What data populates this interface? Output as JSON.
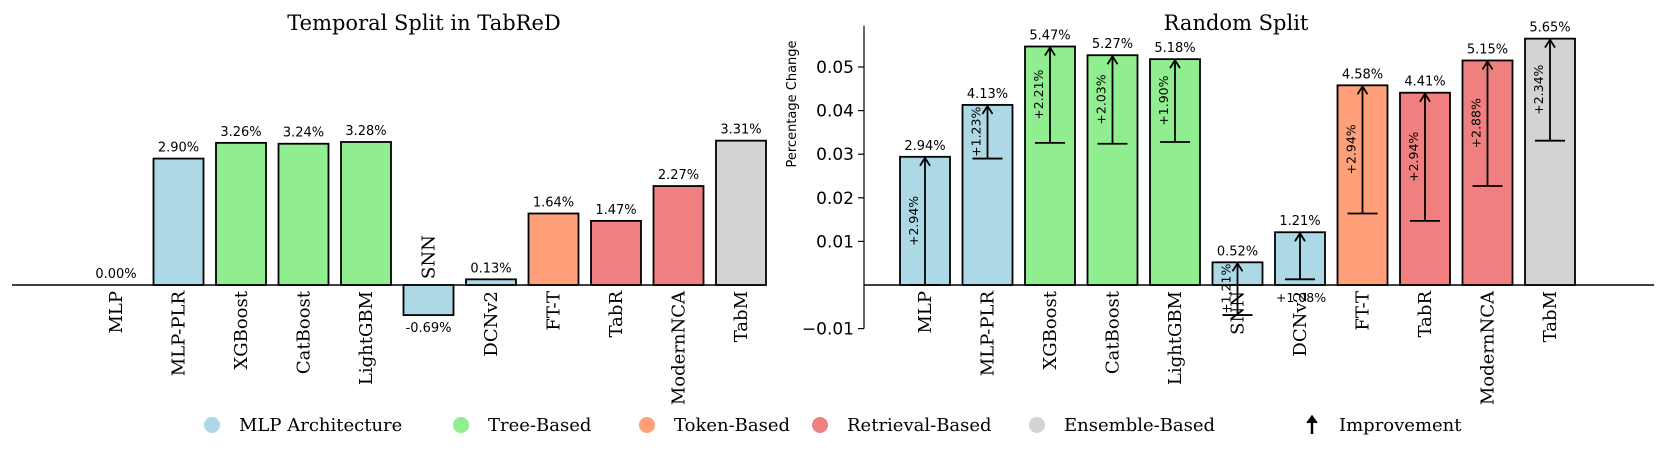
{
  "legend": [
    {
      "name": "MLP Architecture",
      "color": "#ADD8E6",
      "marker": "dot"
    },
    {
      "name": "Tree-Based",
      "color": "#90EE90",
      "marker": "dot"
    },
    {
      "name": "Token-Based",
      "color": "#FFA07A",
      "marker": "dot"
    },
    {
      "name": "Retrieval-Based",
      "color": "#F08080",
      "marker": "dot"
    },
    {
      "name": "Ensemble-Based",
      "color": "#D3D3D3",
      "marker": "dot"
    },
    {
      "name": "Improvement",
      "color": "#000000",
      "marker": "arrow"
    }
  ],
  "chart_data": [
    {
      "type": "bar",
      "title": "Temporal Split in TabReD",
      "ylim": [
        -0.01,
        0.0595
      ],
      "axis_visible": false,
      "categories": [
        "MLP",
        "MLP-PLR",
        "XGBoost",
        "CatBoost",
        "LightGBM",
        "SNN",
        "DCNv2",
        "FT-T",
        "TabR",
        "ModernNCA",
        "TabM"
      ],
      "groups": [
        "MLP Architecture",
        "MLP Architecture",
        "Tree-Based",
        "Tree-Based",
        "Tree-Based",
        "MLP Architecture",
        "MLP Architecture",
        "Token-Based",
        "Retrieval-Based",
        "Retrieval-Based",
        "Ensemble-Based"
      ],
      "values": [
        0.0,
        0.029,
        0.0326,
        0.0324,
        0.0328,
        -0.0069,
        0.0013,
        0.0164,
        0.0147,
        0.0227,
        0.0331
      ],
      "labels": [
        "0.00%",
        "2.90%",
        "3.26%",
        "3.24%",
        "3.28%",
        "-0.69%",
        "0.13%",
        "1.64%",
        "1.47%",
        "2.27%",
        "3.31%"
      ]
    },
    {
      "type": "bar",
      "title": "Random Split",
      "ylabel": "Percentage Change",
      "ylim": [
        -0.01,
        0.0595
      ],
      "yticks": [
        -0.01,
        0.01,
        0.02,
        0.03,
        0.04,
        0.05
      ],
      "ytick_labels": [
        "−0.01",
        "0.01",
        "0.02",
        "0.03",
        "0.04",
        "0.05"
      ],
      "categories": [
        "MLP",
        "MLP-PLR",
        "XGBoost",
        "CatBoost",
        "LightGBM",
        "SNN",
        "DCNv2",
        "FT-T",
        "TabR",
        "ModernNCA",
        "TabM"
      ],
      "groups": [
        "MLP Architecture",
        "MLP Architecture",
        "Tree-Based",
        "Tree-Based",
        "Tree-Based",
        "MLP Architecture",
        "MLP Architecture",
        "Token-Based",
        "Retrieval-Based",
        "Retrieval-Based",
        "Ensemble-Based"
      ],
      "values": [
        0.0294,
        0.0413,
        0.0547,
        0.0527,
        0.0518,
        0.0052,
        0.0121,
        0.0458,
        0.0441,
        0.0515,
        0.0565
      ],
      "labels": [
        "2.94%",
        "4.13%",
        "5.47%",
        "5.27%",
        "5.18%",
        "0.52%",
        "1.21%",
        "4.58%",
        "4.41%",
        "5.15%",
        "5.65%"
      ],
      "improvement_from": [
        0.0,
        0.029,
        0.0326,
        0.0324,
        0.0328,
        -0.0069,
        0.0013,
        0.0164,
        0.0147,
        0.0227,
        0.0331
      ],
      "improvement_labels": [
        "+2.94%",
        "+1.23%",
        "+2.21%",
        "+2.03%",
        "+1.90%",
        "+1.21%",
        "+1.08%",
        "+2.94%",
        "+2.94%",
        "+2.88%",
        "+2.34%"
      ]
    }
  ]
}
